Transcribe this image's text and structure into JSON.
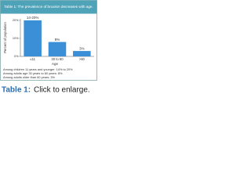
{
  "chart_data": {
    "type": "bar",
    "title": "Table 1: The prevalence of bruxism decreases with age.",
    "x_label": "Age",
    "y_label": "Percent of population",
    "categories": [
      "≤11",
      "30 to 60",
      ">60"
    ],
    "values": [
      20,
      8,
      3
    ],
    "value_labels": [
      "14-20%",
      "8%",
      "3%"
    ],
    "color": "#3a8fd6",
    "ylim": [
      0,
      20
    ],
    "yticks": [
      {
        "value": 0,
        "label": "0%"
      },
      {
        "value": 10,
        "label": "10%"
      },
      {
        "value": 20,
        "label": "20%"
      }
    ],
    "notes": [
      "Among children 11 years and younger: 14% to 20%",
      "Among adults age 30 years to 60 years: 8%",
      "Among adults older than 60 years: 3%"
    ]
  },
  "caption": {
    "label": "Table 1:",
    "text": "Click to enlarge."
  }
}
